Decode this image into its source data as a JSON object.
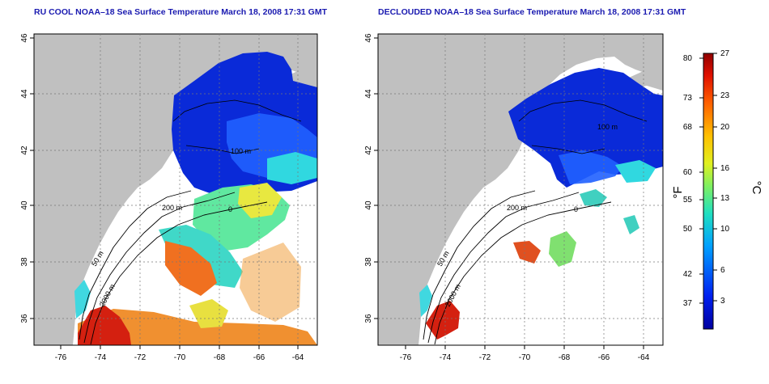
{
  "titles": {
    "left": "RU COOL NOAA–18 Sea Surface Temperature March 18, 2008 17:31 GMT",
    "right": "DECLOUDED NOAA–18 Sea Surface Temperature March 18, 2008 17:31 GMT"
  },
  "axes": {
    "x_ticks": [
      "-76",
      "-74",
      "-72",
      "-70",
      "-68",
      "-66",
      "-64"
    ],
    "y_ticks": [
      "36",
      "38",
      "40",
      "42",
      "44",
      "46"
    ]
  },
  "contour_labels": {
    "c200": "200 m",
    "c50": "50 m",
    "c2000": "2000 m",
    "c100": "100 m",
    "c0": "0"
  },
  "colorbar": {
    "fahrenheit_ticks": [
      "80",
      "73",
      "68",
      "60",
      "55",
      "50",
      "42",
      "37"
    ],
    "celsius_ticks": [
      "27",
      "23",
      "20",
      "16",
      "13",
      "10",
      "6",
      "3"
    ],
    "fahrenheit_unit": "°F",
    "celsius_unit": "°C"
  },
  "colors": {
    "land": "#c0c0c0",
    "title": "#1a1ab0",
    "cold": "#0a2ad8",
    "warm": "#d42010"
  }
}
